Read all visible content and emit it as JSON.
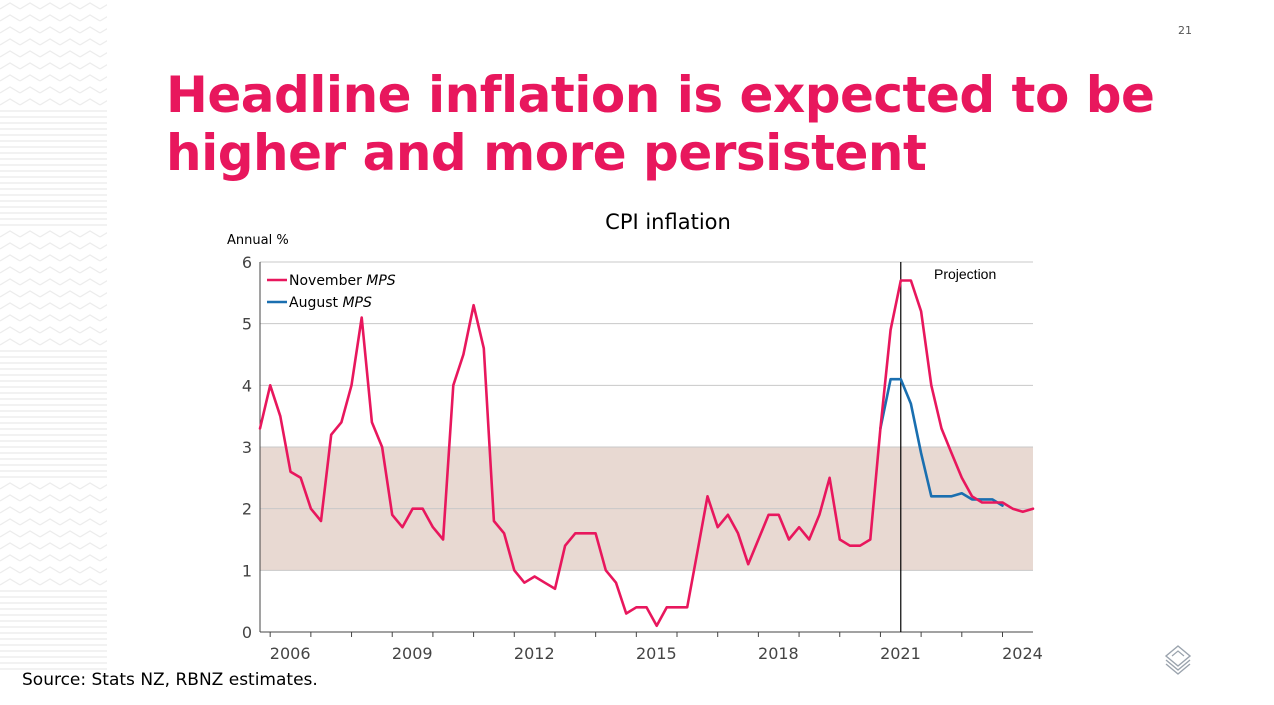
{
  "page": {
    "number": "21",
    "title_line1": "Headline inflation is expected to be",
    "title_line2": "higher and more persistent",
    "source": "Source: Stats NZ, RBNZ estimates."
  },
  "colors": {
    "accent": "#e8175d",
    "november": "#e8175d",
    "august": "#1a6fb0",
    "band": "#e8d9d2"
  },
  "icons": {
    "logo": "rbnz-logo-icon"
  },
  "chart_data": {
    "type": "line",
    "title": "CPI inflation",
    "ylabel": "Annual %",
    "ylim": [
      0,
      6
    ],
    "yticks": [
      0,
      1,
      2,
      3,
      4,
      5,
      6
    ],
    "xlim": [
      2005.75,
      2024.75
    ],
    "xtick_labels": [
      "2006",
      "2009",
      "2012",
      "2015",
      "2018",
      "2021",
      "2024"
    ],
    "grid": true,
    "target_band": [
      1,
      3
    ],
    "projection_start": 2021.5,
    "projection_label": "Projection",
    "legend_position": "top-left",
    "series": [
      {
        "name": "November MPS",
        "legend_main": "November ",
        "legend_italic": "MPS",
        "x": [
          2005.75,
          2006.0,
          2006.25,
          2006.5,
          2006.75,
          2007.0,
          2007.25,
          2007.5,
          2007.75,
          2008.0,
          2008.25,
          2008.5,
          2008.75,
          2009.0,
          2009.25,
          2009.5,
          2009.75,
          2010.0,
          2010.25,
          2010.5,
          2010.75,
          2011.0,
          2011.25,
          2011.5,
          2011.75,
          2012.0,
          2012.25,
          2012.5,
          2012.75,
          2013.0,
          2013.25,
          2013.5,
          2013.75,
          2014.0,
          2014.25,
          2014.5,
          2014.75,
          2015.0,
          2015.25,
          2015.5,
          2015.75,
          2016.0,
          2016.25,
          2016.5,
          2016.75,
          2017.0,
          2017.25,
          2017.5,
          2017.75,
          2018.0,
          2018.25,
          2018.5,
          2018.75,
          2019.0,
          2019.25,
          2019.5,
          2019.75,
          2020.0,
          2020.25,
          2020.5,
          2020.75,
          2021.0,
          2021.25,
          2021.5,
          2021.75,
          2022.0,
          2022.25,
          2022.5,
          2022.75,
          2023.0,
          2023.25,
          2023.5,
          2023.75,
          2024.0,
          2024.25,
          2024.5,
          2024.75
        ],
        "values": [
          3.3,
          4.0,
          3.5,
          2.6,
          2.5,
          2.0,
          1.8,
          3.2,
          3.4,
          4.0,
          5.1,
          3.4,
          3.0,
          1.9,
          1.7,
          2.0,
          2.0,
          1.7,
          1.5,
          4.0,
          4.5,
          5.3,
          4.6,
          1.8,
          1.6,
          1.0,
          0.8,
          0.9,
          0.8,
          0.7,
          1.4,
          1.6,
          1.6,
          1.6,
          1.0,
          0.8,
          0.3,
          0.4,
          0.4,
          0.1,
          0.4,
          0.4,
          0.4,
          1.3,
          2.2,
          1.7,
          1.9,
          1.6,
          1.1,
          1.5,
          1.9,
          1.9,
          1.5,
          1.7,
          1.5,
          1.9,
          2.5,
          1.5,
          1.4,
          1.4,
          1.5,
          3.3,
          4.9,
          5.7,
          5.7,
          5.2,
          4.0,
          3.3,
          2.9,
          2.5,
          2.2,
          2.1,
          2.1,
          2.1,
          2.0,
          1.95,
          2.0
        ]
      },
      {
        "name": "August MPS",
        "legend_main": "August ",
        "legend_italic": "MPS",
        "x": [
          2021.0,
          2021.25,
          2021.5,
          2021.75,
          2022.0,
          2022.25,
          2022.5,
          2022.75,
          2023.0,
          2023.25,
          2023.5,
          2023.75,
          2024.0
        ],
        "values": [
          3.3,
          4.1,
          4.1,
          3.7,
          2.9,
          2.2,
          2.2,
          2.2,
          2.25,
          2.15,
          2.15,
          2.15,
          2.05
        ]
      }
    ]
  }
}
